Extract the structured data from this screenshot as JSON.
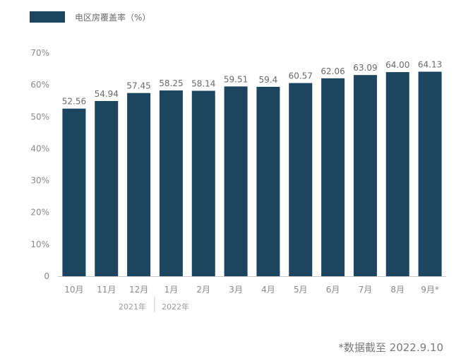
{
  "colors": {
    "bar": "#1e4560",
    "axis": "#c8c8c8",
    "grid": "#ececec"
  },
  "legend": {
    "label": "电区房覆盖率（%）"
  },
  "year_labels": [
    "2021年",
    "2022年"
  ],
  "footnote": "*数据截至 2022.9.10",
  "chart_data": {
    "type": "bar",
    "title": "",
    "xlabel": "",
    "ylabel": "",
    "ylim": [
      0,
      70
    ],
    "y_ticks": [
      "0",
      "10%",
      "20%",
      "30%",
      "40%",
      "50%",
      "60%",
      "70%"
    ],
    "categories": [
      "10月",
      "11月",
      "12月",
      "1月",
      "2月",
      "3月",
      "4月",
      "5月",
      "6月",
      "7月",
      "8月",
      "9月*"
    ],
    "series": [
      {
        "name": "电区房覆盖率（%）",
        "values": [
          52.56,
          54.94,
          57.45,
          58.25,
          58.14,
          59.51,
          59.4,
          60.57,
          62.06,
          63.09,
          64.0,
          64.13
        ],
        "labels": [
          "52.56",
          "54.94",
          "57.45",
          "58.25",
          "58.14",
          "59.51",
          "59.4",
          "60.57",
          "62.06",
          "63.09",
          "64.00",
          "64.13"
        ]
      }
    ],
    "grid": false,
    "legend_position": "top-left"
  }
}
